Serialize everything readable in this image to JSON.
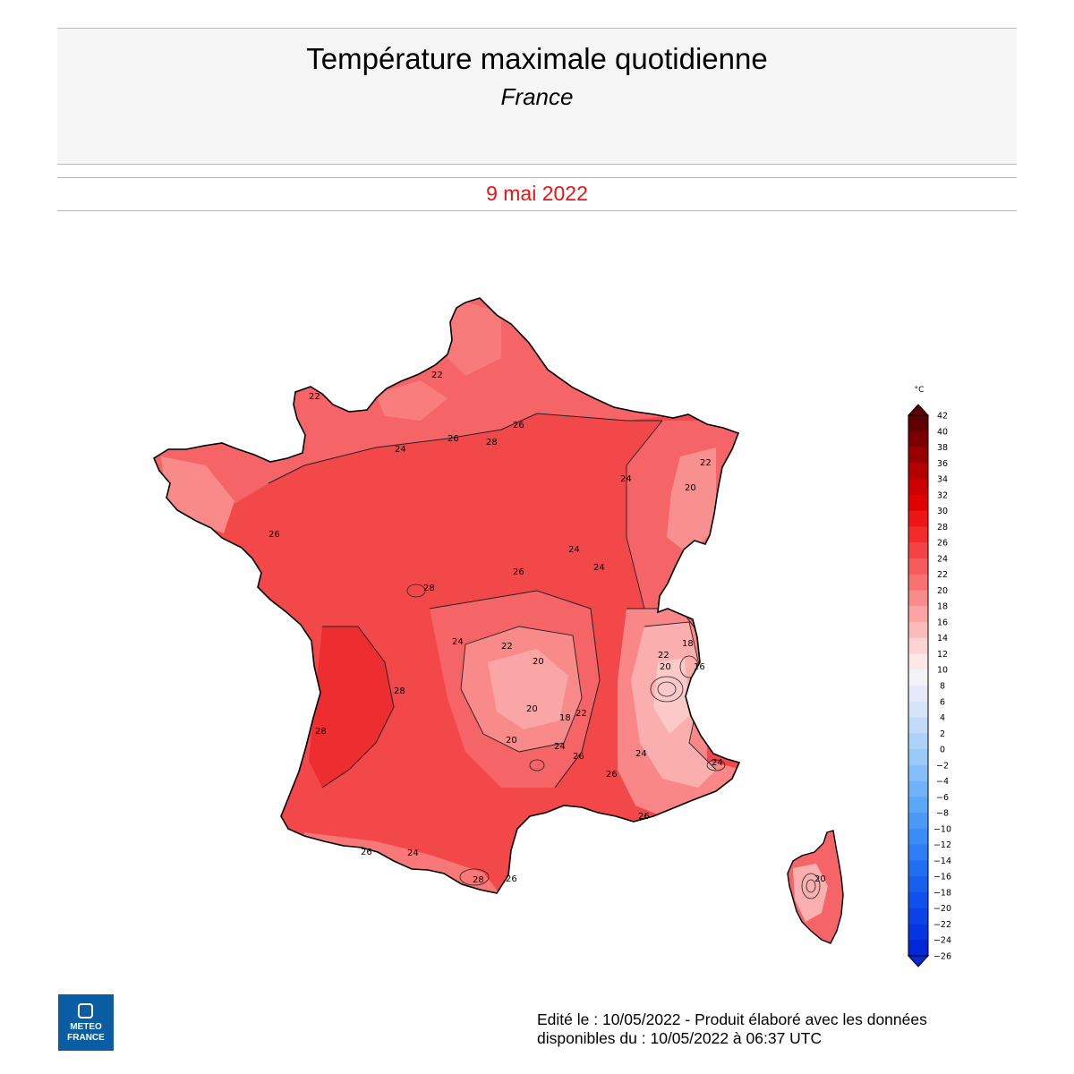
{
  "header": {
    "title": "Température maximale quotidienne",
    "subtitle": "France"
  },
  "date": "9 mai 2022",
  "legend": {
    "unit": "°C",
    "ticks": [
      "42",
      "40",
      "38",
      "36",
      "34",
      "32",
      "30",
      "28",
      "26",
      "24",
      "22",
      "20",
      "18",
      "16",
      "14",
      "12",
      "10",
      "8",
      "6",
      "4",
      "2",
      "0",
      "−2",
      "−4",
      "−6",
      "−8",
      "−10",
      "−12",
      "−14",
      "−16",
      "−18",
      "−20",
      "−22",
      "−24",
      "−26"
    ],
    "colors": [
      "#5c0000",
      "#7a0000",
      "#970000",
      "#b30000",
      "#cc0000",
      "#e00000",
      "#ed1515",
      "#f32b2b",
      "#f54343",
      "#f65a5a",
      "#f87272",
      "#fa8b8b",
      "#fca4a4",
      "#fdbcbc",
      "#fdd3d3",
      "#fde7e7",
      "#f3f3f6",
      "#e6e9f7",
      "#d6e4f7",
      "#c2dcf8",
      "#aed3f9",
      "#99caf8",
      "#85bff8",
      "#70b3f7",
      "#5ca7f6",
      "#4b9af5",
      "#3b8cf4",
      "#2e7df2",
      "#226ef0",
      "#185fee",
      "#1050ec",
      "#0a42e8",
      "#0535e0",
      "#0128d6"
    ]
  },
  "map_labels": [
    {
      "text": "22"
    },
    {
      "text": "22"
    },
    {
      "text": "26"
    },
    {
      "text": "24"
    },
    {
      "text": "26"
    },
    {
      "text": "28"
    },
    {
      "text": "24"
    },
    {
      "text": "24"
    },
    {
      "text": "24"
    },
    {
      "text": "26"
    },
    {
      "text": "26"
    },
    {
      "text": "28"
    },
    {
      "text": "24"
    },
    {
      "text": "22"
    },
    {
      "text": "20"
    },
    {
      "text": "20"
    },
    {
      "text": "18"
    },
    {
      "text": "22"
    },
    {
      "text": "20"
    },
    {
      "text": "24"
    },
    {
      "text": "26"
    },
    {
      "text": "26"
    },
    {
      "text": "28"
    },
    {
      "text": "28"
    },
    {
      "text": "28"
    },
    {
      "text": "22"
    },
    {
      "text": "20"
    },
    {
      "text": "18"
    },
    {
      "text": "16"
    },
    {
      "text": "24"
    },
    {
      "text": "22"
    },
    {
      "text": "20"
    },
    {
      "text": "24"
    },
    {
      "text": "26"
    },
    {
      "text": "26"
    },
    {
      "text": "24"
    },
    {
      "text": "26"
    },
    {
      "text": "20"
    }
  ],
  "logo": {
    "line1": "METEO",
    "line2": "FRANCE"
  },
  "footer": {
    "line1": "Edité le : 10/05/2022 - Produit élaboré avec les données",
    "line2": "disponibles du : 10/05/2022 à 06:37 UTC"
  }
}
